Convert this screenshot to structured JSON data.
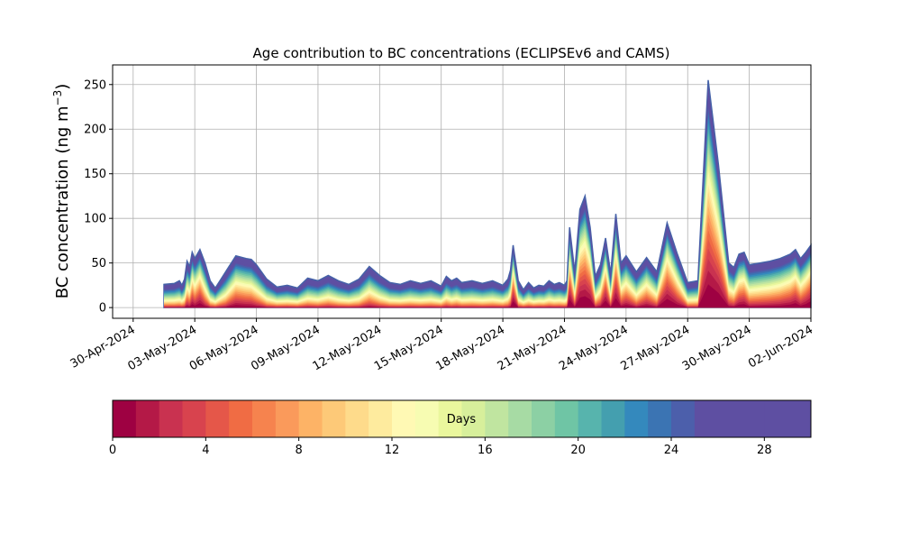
{
  "chart_data": {
    "type": "area",
    "title": "Age contribution to BC concentrations (ECLIPSEv6 and CAMS)",
    "xlabel": "",
    "ylabel": "BC concentration (ng m",
    "ylabel_sup": "−3",
    "ylabel_close": ")",
    "xlim": [
      "2024-04-29",
      "2024-06-02"
    ],
    "ylim": [
      -12,
      272
    ],
    "grid": true,
    "yticks": [
      0,
      50,
      100,
      150,
      200,
      250
    ],
    "xticks": [
      "30-Apr-2024",
      "03-May-2024",
      "06-May-2024",
      "09-May-2024",
      "12-May-2024",
      "15-May-2024",
      "18-May-2024",
      "21-May-2024",
      "24-May-2024",
      "27-May-2024",
      "30-May-2024",
      "02-Jun-2024"
    ],
    "xtick_dates": [
      "2024-04-30",
      "2024-05-03",
      "2024-05-06",
      "2024-05-09",
      "2024-05-12",
      "2024-05-15",
      "2024-05-18",
      "2024-05-21",
      "2024-05-24",
      "2024-05-27",
      "2024-05-30",
      "2024-06-02"
    ],
    "series_bands": 30,
    "total": {
      "x": [
        "2024-05-01 12:00",
        "2024-05-02 00:00",
        "2024-05-02 06:00",
        "2024-05-02 09:00",
        "2024-05-02 12:00",
        "2024-05-02 15:00",
        "2024-05-02 18:00",
        "2024-05-02 21:00",
        "2024-05-03 00:00",
        "2024-05-03 06:00",
        "2024-05-03 12:00",
        "2024-05-03 18:00",
        "2024-05-04 00:00",
        "2024-05-04 12:00",
        "2024-05-05 00:00",
        "2024-05-05 12:00",
        "2024-05-05 18:00",
        "2024-05-06 00:00",
        "2024-05-06 12:00",
        "2024-05-07 00:00",
        "2024-05-07 12:00",
        "2024-05-08 00:00",
        "2024-05-08 12:00",
        "2024-05-09 00:00",
        "2024-05-09 12:00",
        "2024-05-10 00:00",
        "2024-05-10 12:00",
        "2024-05-11 00:00",
        "2024-05-11 12:00",
        "2024-05-12 00:00",
        "2024-05-12 12:00",
        "2024-05-13 00:00",
        "2024-05-13 12:00",
        "2024-05-14 00:00",
        "2024-05-14 12:00",
        "2024-05-15 00:00",
        "2024-05-15 06:00",
        "2024-05-15 12:00",
        "2024-05-15 18:00",
        "2024-05-16 00:00",
        "2024-05-16 12:00",
        "2024-05-17 00:00",
        "2024-05-17 12:00",
        "2024-05-18 00:00",
        "2024-05-18 06:00",
        "2024-05-18 09:00",
        "2024-05-18 12:00",
        "2024-05-18 18:00",
        "2024-05-19 00:00",
        "2024-05-19 06:00",
        "2024-05-19 12:00",
        "2024-05-19 18:00",
        "2024-05-20 00:00",
        "2024-05-20 06:00",
        "2024-05-20 12:00",
        "2024-05-20 18:00",
        "2024-05-21 00:00",
        "2024-05-21 03:00",
        "2024-05-21 06:00",
        "2024-05-21 12:00",
        "2024-05-21 18:00",
        "2024-05-22 00:00",
        "2024-05-22 06:00",
        "2024-05-22 12:00",
        "2024-05-22 18:00",
        "2024-05-23 00:00",
        "2024-05-23 06:00",
        "2024-05-23 12:00",
        "2024-05-23 18:00",
        "2024-05-24 00:00",
        "2024-05-24 12:00",
        "2024-05-25 00:00",
        "2024-05-25 12:00",
        "2024-05-26 00:00",
        "2024-05-26 12:00",
        "2024-05-27 00:00",
        "2024-05-27 12:00",
        "2024-05-28 00:00",
        "2024-05-28 12:00",
        "2024-05-29 00:00",
        "2024-05-29 06:00",
        "2024-05-29 12:00",
        "2024-05-29 18:00",
        "2024-05-30 00:00",
        "2024-05-30 12:00",
        "2024-05-31 00:00",
        "2024-05-31 12:00",
        "2024-06-01 00:00",
        "2024-06-01 06:00",
        "2024-06-01 12:00",
        "2024-06-01 18:00",
        "2024-06-02 00:00"
      ],
      "y": [
        26,
        27,
        30,
        25,
        32,
        52,
        46,
        62,
        55,
        65,
        50,
        30,
        22,
        40,
        58,
        55,
        54,
        48,
        32,
        23,
        25,
        22,
        33,
        30,
        36,
        30,
        26,
        32,
        46,
        36,
        28,
        26,
        30,
        27,
        30,
        24,
        35,
        30,
        33,
        28,
        30,
        27,
        30,
        25,
        32,
        42,
        70,
        30,
        20,
        28,
        22,
        25,
        24,
        30,
        26,
        28,
        25,
        30,
        90,
        40,
        110,
        125,
        90,
        35,
        48,
        78,
        38,
        105,
        50,
        58,
        40,
        56,
        40,
        95,
        60,
        28,
        30,
        255,
        160,
        50,
        45,
        60,
        62,
        48,
        50,
        52,
        55,
        60,
        65,
        55,
        62,
        70
      ],
      "note": "total concentration (ng m-3) read along the top edge of the stacked areas"
    }
  },
  "colorbar": {
    "label": "Days",
    "ticks": [
      "0",
      "4",
      "8",
      "12",
      "16",
      "20",
      "24",
      "28"
    ],
    "range": [
      0,
      30
    ],
    "colors": [
      "#9e0142",
      "#b41947",
      "#c93250",
      "#d8434e",
      "#e55749",
      "#f06c44",
      "#f6834e",
      "#fa9a5b",
      "#fdb366",
      "#fdc978",
      "#fedb8b",
      "#feeb9e",
      "#fff9b4",
      "#f7fcb2",
      "#eaf79d",
      "#d7ef9b",
      "#c0e5a0",
      "#a7dba4",
      "#8cd0a4",
      "#6fc5a5",
      "#57b4ad",
      "#449faf",
      "#3489bd",
      "#3b74b3",
      "#4c5fab",
      "#5e4fa2",
      "#5e4fa2",
      "#5e4fa2",
      "#5e4fa2",
      "#5e4fa2"
    ]
  }
}
